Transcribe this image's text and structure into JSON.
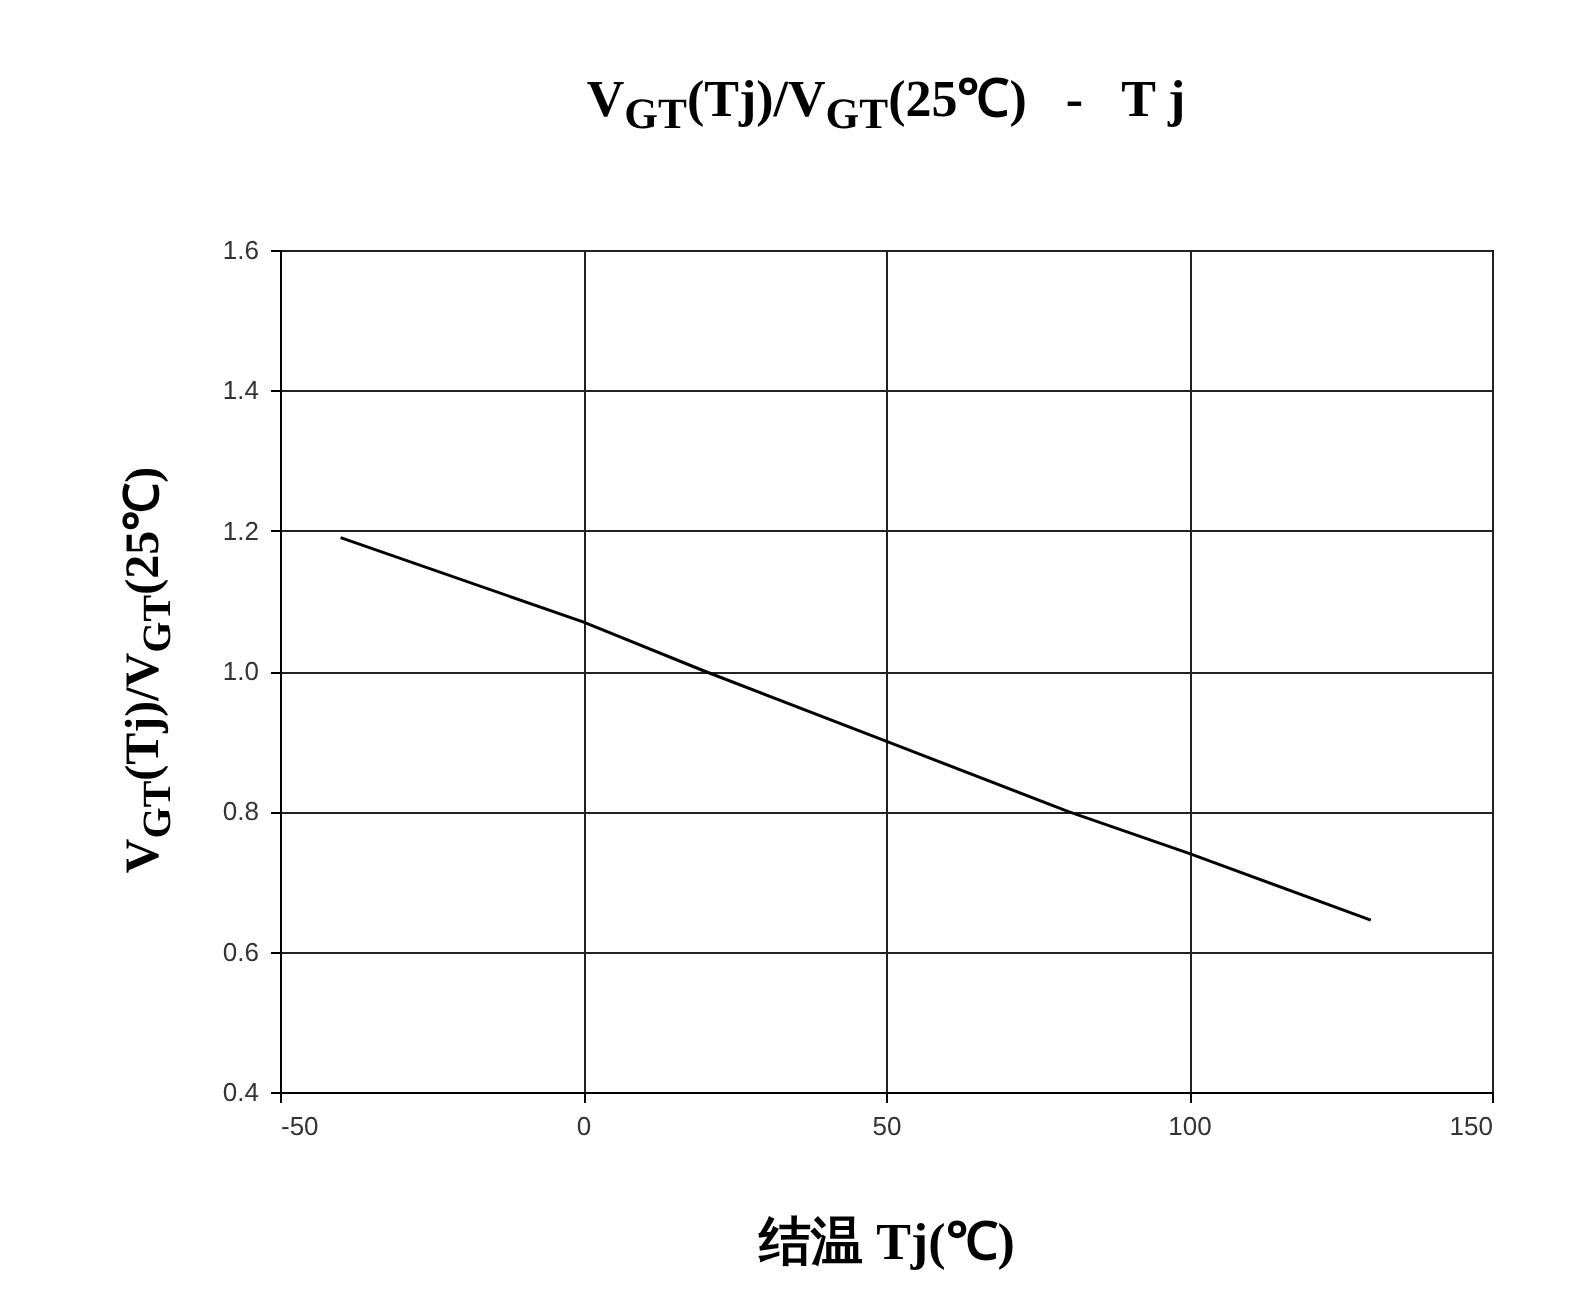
{
  "chart_data": {
    "type": "line",
    "title": "V$_{GT}$(Tj)/V$_{GT}$(25℃)   -   T j",
    "xlabel": "结温  Tj(℃)",
    "ylabel": "V$_{GT}$(Tj)/V$_{GT}$(25℃)",
    "x": [
      -40,
      0,
      20,
      50,
      80,
      100,
      130
    ],
    "series": [
      {
        "color": "#000000",
        "values": [
          1.19,
          1.07,
          1.0,
          0.9,
          0.8,
          0.74,
          0.645
        ]
      }
    ],
    "xlim": [
      -50,
      150
    ],
    "ylim": [
      0.4,
      1.6
    ],
    "xticks": [
      -50,
      0,
      50,
      100,
      150
    ],
    "yticks": [
      {
        "value": 0.4,
        "label": "0.4"
      },
      {
        "value": 0.6,
        "label": "0.6"
      },
      {
        "value": 0.8,
        "label": "0.8"
      },
      {
        "value": 1.0,
        "label": "1.0"
      },
      {
        "value": 1.2,
        "label": "1.2"
      },
      {
        "value": 1.4,
        "label": "1.4"
      },
      {
        "value": 1.6,
        "label": "1.6"
      }
    ],
    "grid": true
  }
}
